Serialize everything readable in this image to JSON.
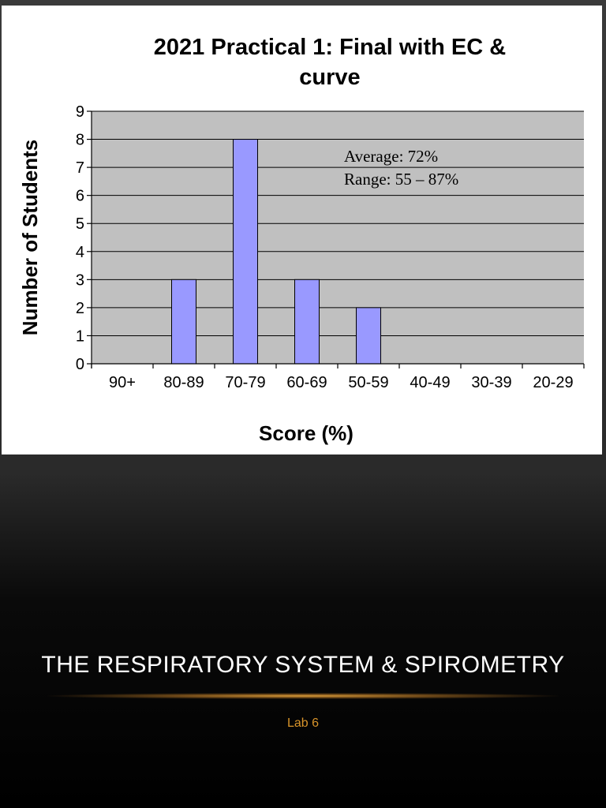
{
  "slide": {
    "title": "THE RESPIRATORY SYSTEM & SPIROMETRY",
    "subtitle": "Lab 6"
  },
  "chart_data": {
    "type": "bar",
    "title_lines": [
      "2021 Practical 1: Final with EC &",
      "curve"
    ],
    "xlabel": "Score (%)",
    "ylabel": "Number of Students",
    "categories": [
      "90+",
      "80-89",
      "70-79",
      "60-69",
      "50-59",
      "40-49",
      "30-39",
      "20-29"
    ],
    "values": [
      0,
      3,
      8,
      3,
      2,
      0,
      0,
      0
    ],
    "ylim": [
      0,
      9
    ],
    "yticks": [
      0,
      1,
      2,
      3,
      4,
      5,
      6,
      7,
      8,
      9
    ],
    "grid": true,
    "annotations": [
      "Average: 72%",
      "Range: 55 – 87%"
    ],
    "colors": {
      "bar": "#9999ff",
      "bar_border": "#000000",
      "plot_background": "#c0c0c0",
      "grid": "#000000"
    }
  }
}
